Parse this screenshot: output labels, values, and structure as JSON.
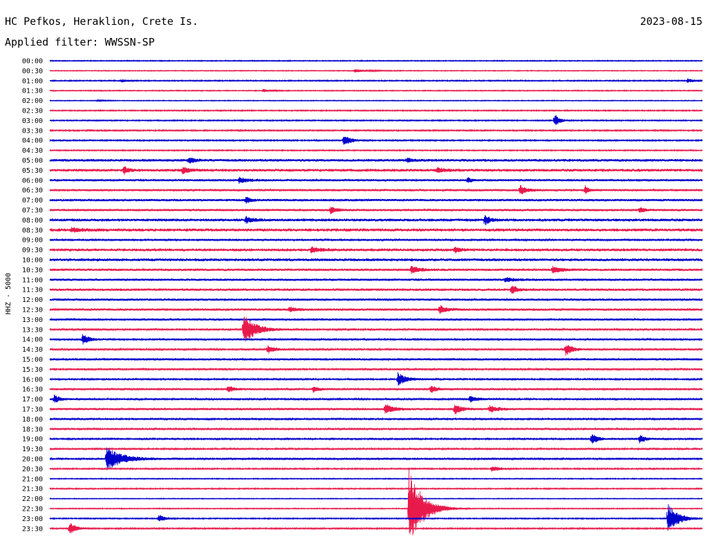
{
  "header": {
    "station": "HC Pefkos, Heraklion, Crete Is.",
    "date": "2023-08-15",
    "filter": "Applied filter: WWSSN-SP"
  },
  "chart_data": {
    "type": "line",
    "title": "HC Pefkos, Heraklion, Crete Is.",
    "subtitle": "Applied filter: WWSSN-SP",
    "ylabel": "HHZ - 5000",
    "colors": {
      "even": "#0000cc",
      "odd": "#e8194b"
    },
    "trace_labels": [
      "00:00",
      "00:30",
      "01:00",
      "01:30",
      "02:00",
      "02:30",
      "03:00",
      "03:30",
      "04:00",
      "04:30",
      "05:00",
      "05:30",
      "06:00",
      "06:30",
      "07:00",
      "07:30",
      "08:00",
      "08:30",
      "09:00",
      "09:30",
      "10:00",
      "10:30",
      "11:00",
      "11:30",
      "12:00",
      "12:30",
      "13:00",
      "13:30",
      "14:00",
      "14:30",
      "15:00",
      "15:30",
      "16:00",
      "16:30",
      "17:00",
      "17:30",
      "18:00",
      "18:30",
      "19:00",
      "19:30",
      "20:00",
      "20:30",
      "21:00",
      "21:30",
      "22:00",
      "22:30",
      "23:00",
      "23:30"
    ],
    "noise_level": [
      0.6,
      0.5,
      0.7,
      0.6,
      0.5,
      0.7,
      0.7,
      0.8,
      0.8,
      0.7,
      1.5,
      1.6,
      1.2,
      1.1,
      1.3,
      1.2,
      1.6,
      1.7,
      1.0,
      1.6,
      1.6,
      1.3,
      1.2,
      1.4,
      1.2,
      1.3,
      1.1,
      1.0,
      1.0,
      1.0,
      1.2,
      1.0,
      0.9,
      1.1,
      1.0,
      1.2,
      1.0,
      1.0,
      0.9,
      0.9,
      1.0,
      0.8,
      0.6,
      0.7,
      0.5,
      0.6,
      0.7,
      0.8
    ],
    "events": [
      {
        "trace": "00:30",
        "minute": 14.0,
        "amplitude": 2,
        "duration": 1.5
      },
      {
        "trace": "01:00",
        "minute": 3.3,
        "amplitude": 2,
        "duration": 0.6
      },
      {
        "trace": "01:00",
        "minute": 29.3,
        "amplitude": 3,
        "duration": 0.6
      },
      {
        "trace": "01:30",
        "minute": 9.8,
        "amplitude": 2,
        "duration": 0.8
      },
      {
        "trace": "02:00",
        "minute": 2.2,
        "amplitude": 1.5,
        "duration": 0.5
      },
      {
        "trace": "03:00",
        "minute": 23.2,
        "amplitude": 9,
        "duration": 0.5
      },
      {
        "trace": "04:00",
        "minute": 13.5,
        "amplitude": 9,
        "duration": 0.6
      },
      {
        "trace": "05:00",
        "minute": 6.4,
        "amplitude": 4,
        "duration": 0.6
      },
      {
        "trace": "05:00",
        "minute": 16.4,
        "amplitude": 3,
        "duration": 0.5
      },
      {
        "trace": "05:30",
        "minute": 3.4,
        "amplitude": 6,
        "duration": 0.4
      },
      {
        "trace": "05:30",
        "minute": 6.1,
        "amplitude": 5,
        "duration": 0.6
      },
      {
        "trace": "05:30",
        "minute": 17.8,
        "amplitude": 4,
        "duration": 0.6
      },
      {
        "trace": "06:00",
        "minute": 8.7,
        "amplitude": 4,
        "duration": 0.8
      },
      {
        "trace": "06:00",
        "minute": 19.2,
        "amplitude": 4,
        "duration": 0.4
      },
      {
        "trace": "06:30",
        "minute": 21.6,
        "amplitude": 7,
        "duration": 0.7
      },
      {
        "trace": "06:30",
        "minute": 24.6,
        "amplitude": 7,
        "duration": 0.4
      },
      {
        "trace": "07:00",
        "minute": 9.0,
        "amplitude": 5,
        "duration": 0.5
      },
      {
        "trace": "07:30",
        "minute": 12.9,
        "amplitude": 5,
        "duration": 0.6
      },
      {
        "trace": "07:30",
        "minute": 27.1,
        "amplitude": 4,
        "duration": 0.5
      },
      {
        "trace": "08:00",
        "minute": 9.0,
        "amplitude": 5,
        "duration": 0.6
      },
      {
        "trace": "08:00",
        "minute": 20.0,
        "amplitude": 8,
        "duration": 0.4
      },
      {
        "trace": "08:30",
        "minute": 1.0,
        "amplitude": 3,
        "duration": 0.8
      },
      {
        "trace": "09:30",
        "minute": 12.0,
        "amplitude": 4,
        "duration": 0.8
      },
      {
        "trace": "09:30",
        "minute": 18.6,
        "amplitude": 4,
        "duration": 0.5
      },
      {
        "trace": "10:30",
        "minute": 16.6,
        "amplitude": 5,
        "duration": 0.9
      },
      {
        "trace": "10:30",
        "minute": 23.1,
        "amplitude": 5,
        "duration": 0.8
      },
      {
        "trace": "11:00",
        "minute": 20.9,
        "amplitude": 3,
        "duration": 1.0
      },
      {
        "trace": "11:30",
        "minute": 21.2,
        "amplitude": 7,
        "duration": 0.5
      },
      {
        "trace": "12:30",
        "minute": 17.9,
        "amplitude": 6,
        "duration": 0.7
      },
      {
        "trace": "12:30",
        "minute": 11.0,
        "amplitude": 3,
        "duration": 0.8
      },
      {
        "trace": "13:30",
        "minute": 8.9,
        "amplitude": 22,
        "duration": 1.1
      },
      {
        "trace": "14:00",
        "minute": 1.5,
        "amplitude": 7,
        "duration": 0.7
      },
      {
        "trace": "14:30",
        "minute": 10.0,
        "amplitude": 6,
        "duration": 0.6
      },
      {
        "trace": "14:30",
        "minute": 23.7,
        "amplitude": 8,
        "duration": 0.7
      },
      {
        "trace": "16:00",
        "minute": 16.0,
        "amplitude": 9,
        "duration": 0.8
      },
      {
        "trace": "16:30",
        "minute": 8.2,
        "amplitude": 5,
        "duration": 0.5
      },
      {
        "trace": "16:30",
        "minute": 12.1,
        "amplitude": 4,
        "duration": 0.6
      },
      {
        "trace": "16:30",
        "minute": 17.5,
        "amplitude": 6,
        "duration": 0.5
      },
      {
        "trace": "17:00",
        "minute": 0.2,
        "amplitude": 6,
        "duration": 0.5
      },
      {
        "trace": "17:00",
        "minute": 19.3,
        "amplitude": 5,
        "duration": 0.7
      },
      {
        "trace": "17:30",
        "minute": 15.4,
        "amplitude": 7,
        "duration": 0.8
      },
      {
        "trace": "17:30",
        "minute": 18.6,
        "amplitude": 8,
        "duration": 0.6
      },
      {
        "trace": "17:30",
        "minute": 20.2,
        "amplitude": 5,
        "duration": 0.8
      },
      {
        "trace": "19:00",
        "minute": 24.9,
        "amplitude": 8,
        "duration": 0.6
      },
      {
        "trace": "19:00",
        "minute": 27.1,
        "amplitude": 6,
        "duration": 0.6
      },
      {
        "trace": "20:00",
        "minute": 2.6,
        "amplitude": 16,
        "duration": 1.6
      },
      {
        "trace": "20:30",
        "minute": 20.3,
        "amplitude": 4,
        "duration": 0.8
      },
      {
        "trace": "22:30",
        "minute": 16.5,
        "amplitude": 55,
        "duration": 1.3
      },
      {
        "trace": "23:00",
        "minute": 5.0,
        "amplitude": 5,
        "duration": 0.6
      },
      {
        "trace": "23:00",
        "minute": 28.4,
        "amplitude": 20,
        "duration": 1.0
      },
      {
        "trace": "23:30",
        "minute": 0.9,
        "amplitude": 9,
        "duration": 0.6
      }
    ]
  }
}
